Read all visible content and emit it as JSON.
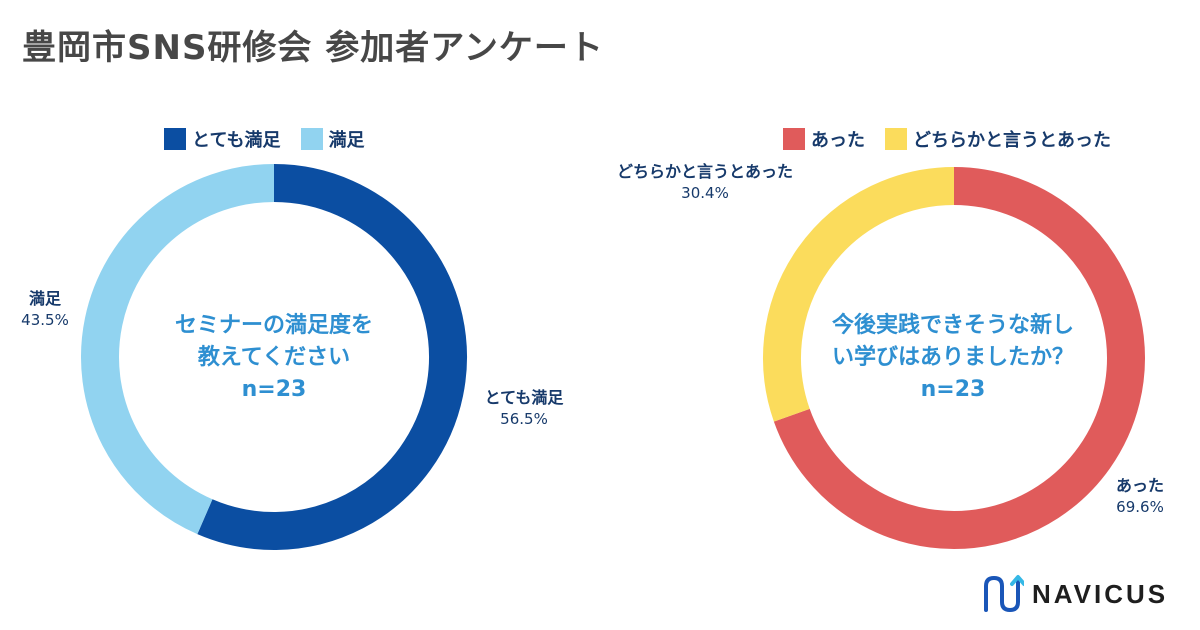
{
  "title": "豊岡市SNS研修会 参加者アンケート",
  "chart_data": [
    {
      "type": "pie",
      "style": "donut",
      "question": "セミナーの満足度を教えてください",
      "center_lines": [
        "セミナーの満足度を",
        "教えてください",
        "n=23"
      ],
      "n": 23,
      "legend": [
        "とても満足",
        "満足"
      ],
      "slices": [
        {
          "label": "とても満足",
          "value": 56.5,
          "display": "56.5%",
          "color": "#0b4ea2"
        },
        {
          "label": "満足",
          "value": 43.5,
          "display": "43.5%",
          "color": "#91d3f0"
        }
      ]
    },
    {
      "type": "pie",
      "style": "donut",
      "question": "今後実践できそうな新しい学びはありましたか？",
      "center_lines": [
        "今後実践できそうな新し",
        "い学びはありましたか？",
        "n=23"
      ],
      "n": 23,
      "legend": [
        "あった",
        "どちらかと言うとあった"
      ],
      "slices": [
        {
          "label": "あった",
          "value": 69.6,
          "display": "69.6%",
          "color": "#e05b5b"
        },
        {
          "label": "どちらかと言うとあった",
          "value": 30.4,
          "display": "30.4%",
          "color": "#fbdc5c"
        }
      ]
    }
  ],
  "brand": {
    "name": "NAVICUS",
    "icon": "navicus-logo-icon"
  }
}
